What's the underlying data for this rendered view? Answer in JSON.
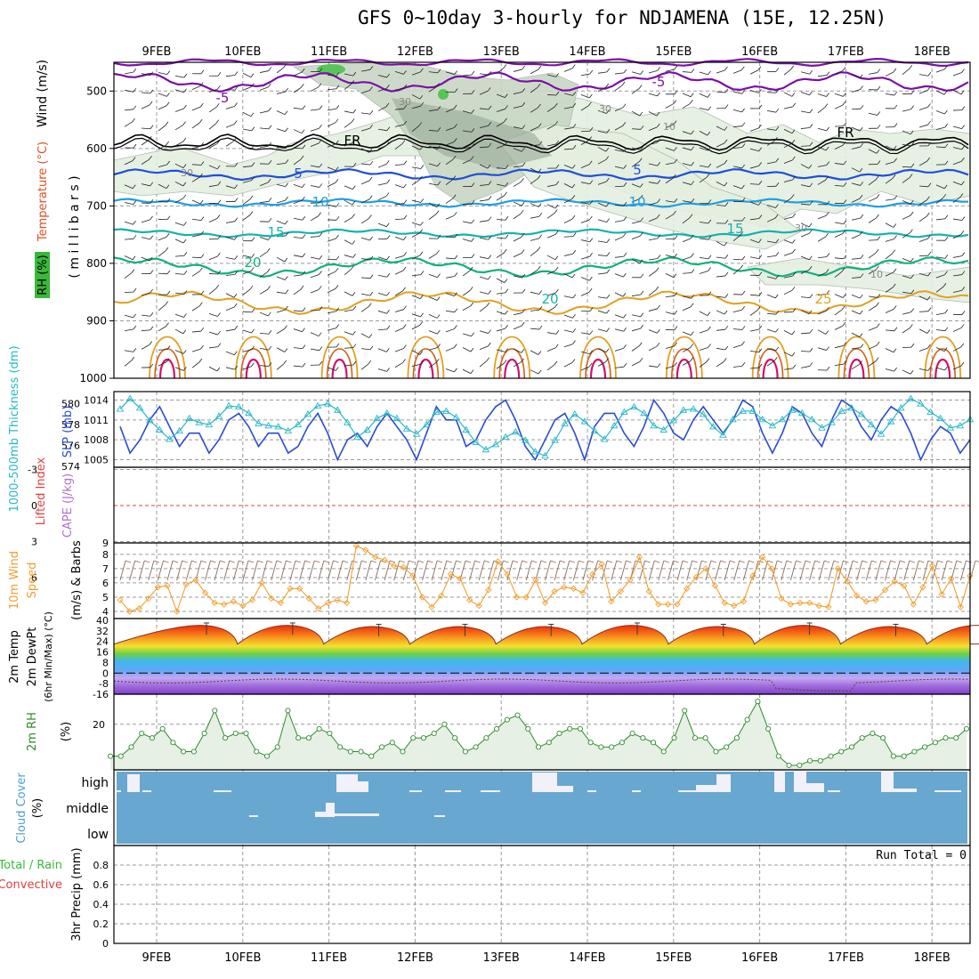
{
  "title": "GFS 0~10day 3-hourly for NDJAMENA (15E, 12.25N)",
  "colors": {
    "frame": "#000000",
    "grid": "#9a9a9a",
    "purple": "#7a0fa8",
    "black": "#000000",
    "blue": "#1f4fd8",
    "lightblue": "#1f9fe0",
    "teal": "#16b0b0",
    "green": "#10b080",
    "orange": "#e0a020",
    "darkorange": "#d06010",
    "magenta": "#d0106a",
    "rh_light": "#e4efe0",
    "rh_mid": "#c9d7c4",
    "rh_dark": "#98a898",
    "rh_green": "#56c456",
    "slp": "#2a4bd0",
    "thick": "#28b8c8",
    "wind10": "#f0a030",
    "barb10": "#8a6a5a",
    "rh2m": "#2e8b2e",
    "rh2m_fill": "#e6f0e4",
    "cloud_bg": "#68a8d0",
    "cloud_fg": "#f2f0f8",
    "li_red": "#e04040",
    "cape_violet": "#b070d0"
  },
  "day_labels": [
    "9FEB",
    "10FEB",
    "11FEB",
    "12FEB",
    "13FEB",
    "14FEB",
    "15FEB",
    "16FEB",
    "17FEB",
    "18FEB"
  ],
  "panels": {
    "upper": {
      "label_rh": "RH (%)",
      "label_temp": "Temperature (°C)",
      "label_wind": "Wind (m/s)",
      "label_mb": "( m i l l i b a r s )",
      "ticks": [
        "500",
        "600",
        "700",
        "800",
        "900",
        "1000"
      ],
      "contour_labels": [
        "-5",
        "-5",
        "FR",
        "FR",
        "5",
        "5",
        "10",
        "10",
        "15",
        "15",
        "20",
        "20",
        "25",
        "30",
        "30",
        "30",
        "30",
        "10",
        "10"
      ]
    },
    "slp": {
      "label_thick": "1000-500mb Thickness (dm)",
      "label_slp": "SLP (mb)",
      "thick_ticks": [
        "580",
        "578",
        "576",
        "574"
      ],
      "slp_ticks": [
        "1014",
        "1011",
        "1008",
        "1005"
      ]
    },
    "li": {
      "label_li": "Lifted Index",
      "label_cape": "CAPE (J/kg)",
      "ticks": [
        "-3",
        "0",
        "3",
        "6"
      ],
      "right_tick": "9"
    },
    "wind10": {
      "label_1": "10m Wind",
      "label_2": "Speed",
      "label_3": "(m/s) & Barbs",
      "ticks": [
        "8",
        "7",
        "6",
        "5",
        "4"
      ]
    },
    "temp2m": {
      "label_1": "2m Temp",
      "label_2": "2m DewPt",
      "label_3": "(6hr Min/Max) (°C)",
      "ticks": [
        "40",
        "32",
        "24",
        "16",
        "8",
        "0",
        "-8",
        "-16"
      ]
    },
    "rh2m": {
      "label": "2m RH",
      "unit": "(%)",
      "ticks": [
        "20"
      ]
    },
    "cloud": {
      "label": "Cloud Cover",
      "unit": "(%)",
      "levels": [
        "high",
        "middle",
        "low"
      ]
    },
    "precip": {
      "label_left": "Total / Rain",
      "label_conv": "Convective",
      "label_axis": "3hr Precip (mm)",
      "ticks": [
        "0.8",
        "0.6",
        "0.4",
        "0.2",
        "0"
      ],
      "run_total": "Run Total = 0"
    }
  },
  "chart_data": [
    {
      "type": "line",
      "title": "SLP (mb)",
      "x": "3-hourly steps from 8FEB 12Z to 18FEB 06Z",
      "series": [
        {
          "name": "SLP (mb)",
          "values": [
            1010,
            1006,
            1008,
            1011,
            1013,
            1010,
            1007,
            1009,
            1009,
            1006,
            1008,
            1011,
            1012,
            1010,
            1007,
            1009,
            1009,
            1006,
            1007,
            1010,
            1012,
            1009,
            1005,
            1008,
            1009,
            1007,
            1010,
            1012,
            1010,
            1008,
            1005,
            1009,
            1013,
            1011,
            1011,
            1007,
            1008,
            1011,
            1013,
            1014,
            1011,
            1007,
            1005,
            1008,
            1011,
            1012,
            1009,
            1005,
            1010,
            1012,
            1012,
            1009,
            1007,
            1010,
            1014,
            1012,
            1009,
            1008,
            1011,
            1013,
            1011,
            1009,
            1011,
            1014,
            1013,
            1009,
            1006,
            1009,
            1013,
            1012,
            1009,
            1007,
            1011,
            1014,
            1013,
            1010,
            1008,
            1011,
            1013,
            1012,
            1009,
            1005,
            1008,
            1010,
            1009,
            1006,
            1008
          ]
        }
      ],
      "ylim": [
        1004,
        1015
      ]
    },
    {
      "type": "line",
      "title": "1000-500mb Thickness (dm)",
      "series": [
        {
          "name": "1000-500mb Thickness (dm)",
          "values": [
            579.5,
            580.5,
            579.6,
            578.4,
            577.5,
            576.6,
            577.4,
            578.6,
            578.2,
            578.0,
            578.8,
            579.8,
            579.7,
            579.1,
            578.1,
            577.9,
            577.8,
            577.4,
            578.0,
            579.0,
            579.8,
            580.0,
            579.4,
            578.2,
            576.8,
            577.5,
            578.6,
            579.1,
            578.6,
            577.6,
            577.1,
            578.0,
            579.2,
            579.3,
            578.7,
            577.5,
            576.3,
            575.6,
            576.1,
            576.8,
            577.3,
            576.5,
            575.4,
            575.0,
            576.5,
            578.1,
            579.0,
            578.3,
            577.4,
            576.6,
            577.9,
            579.2,
            579.7,
            579.1,
            577.9,
            577.5,
            578.4,
            579.4,
            579.5,
            579.0,
            577.8,
            577.0,
            578.5,
            579.3,
            579.3,
            578.5,
            577.9,
            578.5,
            579.4,
            579.1,
            578.5,
            577.7,
            578.2,
            579.3,
            579.6,
            579.0,
            578.0,
            577.1,
            578.3,
            579.6,
            580.5,
            580.0,
            579.2,
            578.6,
            577.7,
            577.9,
            578.5
          ]
        }
      ],
      "ylim": [
        574,
        581
      ]
    },
    {
      "type": "line",
      "title": "10m Wind Speed (m/s)",
      "series": [
        {
          "name": "10m Wind Speed",
          "values": [
            4.8,
            4.0,
            4.2,
            4.9,
            5.7,
            5.8,
            4.0,
            5.9,
            6.2,
            5.3,
            4.6,
            4.5,
            4.7,
            4.4,
            4.8,
            6.0,
            4.9,
            4.6,
            5.6,
            5.6,
            4.9,
            4.2,
            4.6,
            4.8,
            4.6,
            8.6,
            8.3,
            7.8,
            7.6,
            7.2,
            7.1,
            6.5,
            5.0,
            4.3,
            5.1,
            6.6,
            6.3,
            4.8,
            4.4,
            5.5,
            7.5,
            6.6,
            5.0,
            5.0,
            6.2,
            4.6,
            5.4,
            5.7,
            5.6,
            5.3,
            6.6,
            7.3,
            4.7,
            5.4,
            6.2,
            7.8,
            5.4,
            4.5,
            4.5,
            4.5,
            5.6,
            6.4,
            7.0,
            5.8,
            4.6,
            4.4,
            4.7,
            6.5,
            7.8,
            7.0,
            4.9,
            4.5,
            4.6,
            4.6,
            4.4,
            4.3,
            7.0,
            6.1,
            5.1,
            4.7,
            4.8,
            5.5,
            6.1,
            5.8,
            4.5,
            5.7,
            7.2,
            5.2,
            6.3,
            4.3,
            6.5
          ]
        }
      ],
      "ylim": [
        3.5,
        8.8
      ]
    },
    {
      "type": "area",
      "title": "2m RH (%)",
      "series": [
        {
          "name": "2m RH",
          "values": [
            13,
            13,
            15,
            18,
            17,
            19,
            16,
            14,
            14,
            18,
            23,
            17,
            18,
            18,
            14,
            13,
            15,
            23,
            17,
            17,
            19,
            18,
            15,
            14,
            14,
            13,
            15,
            16,
            14,
            17,
            17,
            18,
            20,
            17,
            14,
            15,
            17,
            19,
            21,
            22,
            19,
            15,
            16,
            18,
            19,
            19,
            16,
            15,
            15,
            16,
            18,
            17,
            16,
            14,
            17,
            23,
            17,
            17,
            14,
            15,
            17,
            21,
            25,
            19,
            13,
            11,
            11,
            12,
            12,
            13,
            14,
            15,
            17,
            18,
            17,
            13,
            13,
            14,
            15,
            16,
            17,
            17,
            19
          ]
        }
      ],
      "ylim": [
        10,
        26
      ]
    },
    {
      "type": "line",
      "title": "2m Temp (°C)",
      "series": [
        {
          "name": "2m Temp daily max",
          "values": [
            36,
            36,
            35,
            35,
            35,
            36,
            35,
            36,
            35,
            36
          ]
        },
        {
          "name": "2m Temp daily min",
          "values": [
            22,
            22,
            22,
            22,
            22,
            22,
            22,
            22,
            22,
            22
          ]
        },
        {
          "name": "2m DewPt",
          "values": [
            -6,
            -5,
            -5,
            -6,
            -5,
            -4,
            -6,
            -7,
            -14,
            -9
          ]
        }
      ],
      "ylim": [
        -16,
        40
      ]
    },
    {
      "type": "line",
      "title": "3hr Precip (mm)",
      "series": [
        {
          "name": "3hr Precip",
          "values": [
            0,
            0,
            0,
            0,
            0,
            0,
            0,
            0,
            0,
            0
          ]
        }
      ],
      "ylim": [
        0,
        1
      ]
    }
  ]
}
